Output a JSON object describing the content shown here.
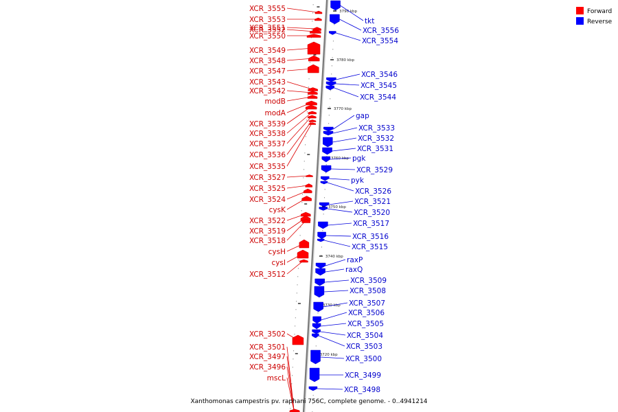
{
  "caption": "Xanthomonas campestris pv. raphani 756C, complete genome. - 0..4941214",
  "legend": [
    {
      "label": "Forward",
      "color": "#ff0000"
    },
    {
      "label": "Reverse",
      "color": "#0000ff"
    }
  ],
  "ticks": [
    "3790 kbp",
    "3780 kbp",
    "3770 kbp",
    "3760 kbp",
    "3750 kbp",
    "3740 kbp",
    "3730 kbp",
    "3720 kbp"
  ],
  "forward_labels": [
    "XCR_3555",
    "XCR_3553",
    "XCR_3551",
    "XCR_3552",
    "XCR_3550",
    "XCR_3549",
    "XCR_3548",
    "XCR_3547",
    "XCR_3543",
    "XCR_3542",
    "modB",
    "modA",
    "XCR_3539",
    "XCR_3538",
    "XCR_3537",
    "XCR_3536",
    "XCR_3535",
    "XCR_3527",
    "XCR_3525",
    "XCR_3524",
    "cysK",
    "XCR_3522",
    "XCR_3519",
    "XCR_3518",
    "cysH",
    "cysI",
    "XCR_3512",
    "XCR_3502",
    "XCR_3501",
    "XCR_3497",
    "XCR_3496",
    "mscL"
  ],
  "reverse_labels": [
    "tkt",
    "XCR_3556",
    "XCR_3554",
    "XCR_3546",
    "XCR_3545",
    "XCR_3544",
    "gap",
    "XCR_3533",
    "XCR_3532",
    "XCR_3531",
    "pgk",
    "XCR_3529",
    "pyk",
    "XCR_3526",
    "XCR_3521",
    "XCR_3520",
    "XCR_3517",
    "XCR_3516",
    "XCR_3515",
    "raxP",
    "raxQ",
    "XCR_3509",
    "XCR_3508",
    "XCR_3507",
    "XCR_3506",
    "XCR_3505",
    "XCR_3504",
    "XCR_3503",
    "XCR_3500",
    "XCR_3499",
    "XCR_3498"
  ]
}
